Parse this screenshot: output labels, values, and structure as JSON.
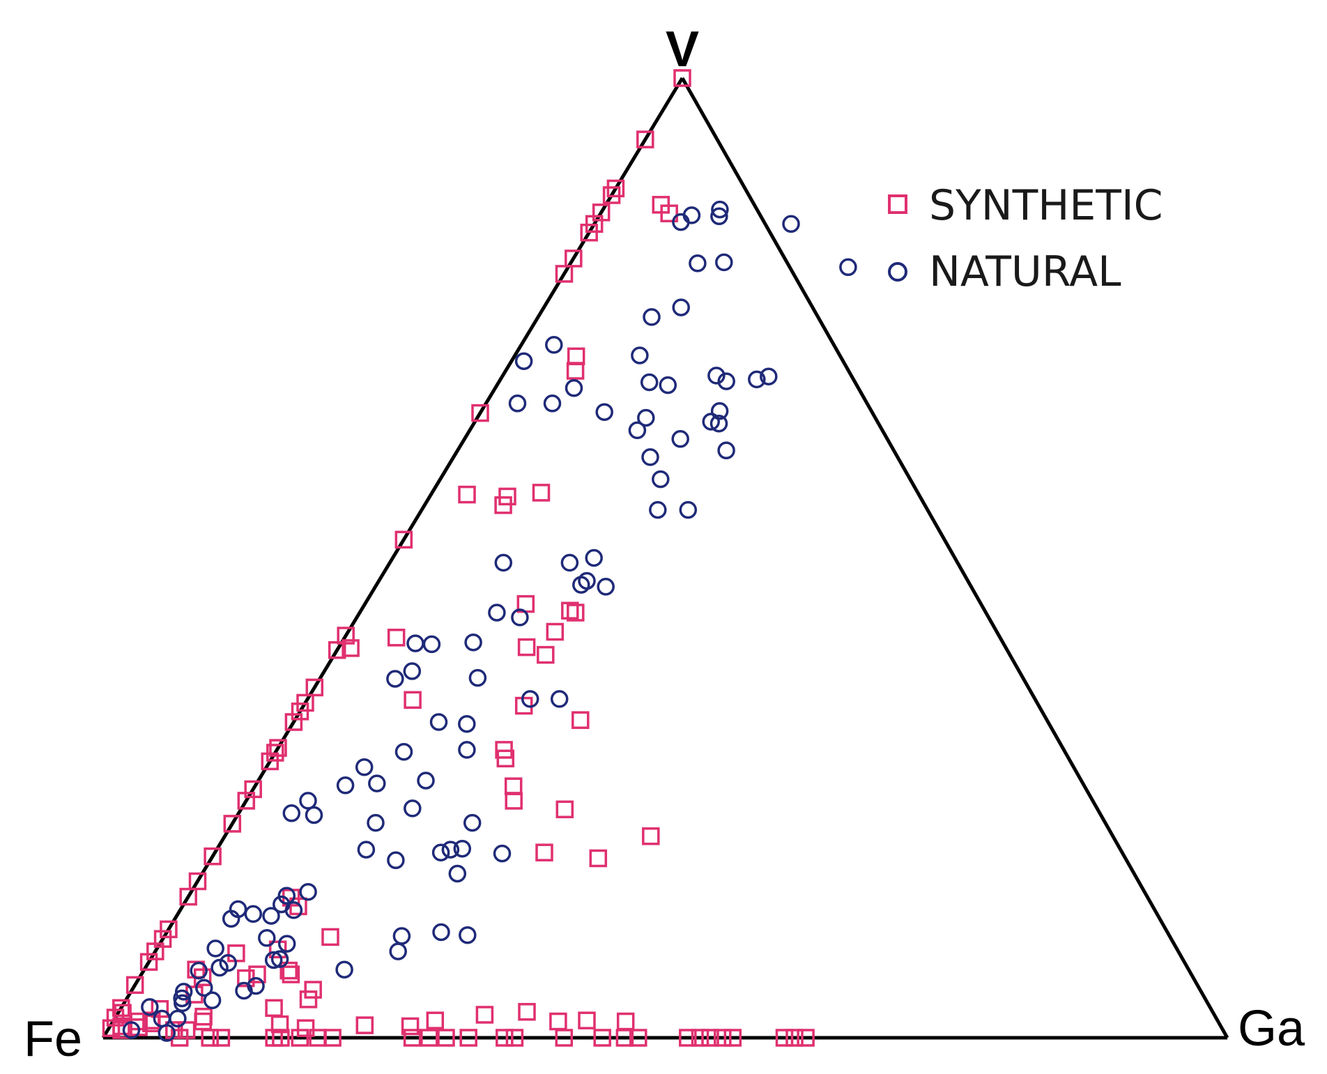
{
  "chart_data": {
    "type": "scatter",
    "subtype": "ternary",
    "title": "",
    "vertices": {
      "top": "V",
      "left": "Fe",
      "right": "Ga"
    },
    "colors": {
      "synthetic": "#e0306f",
      "natural": "#1f2a78",
      "edge": "#000000"
    },
    "legend": {
      "placement": "top-right",
      "entries": [
        {
          "label": "SYNTHETIC",
          "marker": "square",
          "series": "synthetic"
        },
        {
          "label": "NATURAL",
          "marker": "circle",
          "series": "natural"
        }
      ]
    },
    "series": [
      {
        "name": "SYNTHETIC",
        "marker": "square",
        "points": [
          [
            1.0,
            0.0
          ],
          [
            0.936,
            0.0
          ],
          [
            0.885,
            0.0
          ],
          [
            0.878,
            0.0
          ],
          [
            0.86,
            0.0
          ],
          [
            0.848,
            0.0
          ],
          [
            0.868,
            0.049
          ],
          [
            0.859,
            0.061
          ],
          [
            0.839,
            0.0
          ],
          [
            0.812,
            0.0
          ],
          [
            0.796,
            0.0
          ],
          [
            0.71,
            0.055
          ],
          [
            0.695,
            0.062
          ],
          [
            0.651,
            0.0
          ],
          [
            0.568,
            0.097
          ],
          [
            0.519,
            0.0
          ],
          [
            0.564,
            0.069
          ],
          [
            0.555,
            0.07
          ],
          [
            0.566,
            0.032
          ],
          [
            0.419,
            0.0
          ],
          [
            0.417,
            0.046
          ],
          [
            0.406,
            0.011
          ],
          [
            0.404,
            0.0
          ],
          [
            0.349,
            0.0
          ],
          [
            0.302,
            0.0
          ],
          [
            0.288,
            0.0
          ],
          [
            0.423,
            0.184
          ],
          [
            0.443,
            0.192
          ],
          [
            0.452,
            0.143
          ],
          [
            0.445,
            0.186
          ],
          [
            0.407,
            0.167
          ],
          [
            0.399,
            0.188
          ],
          [
            0.331,
            0.254
          ],
          [
            0.365,
            0.0
          ],
          [
            0.34,
            0.0
          ],
          [
            0.329,
            0.0
          ],
          [
            0.352,
            0.094
          ],
          [
            0.297,
            0.0
          ],
          [
            0.259,
            0.0
          ],
          [
            0.247,
            0.0
          ],
          [
            0.223,
            0.0
          ],
          [
            0.189,
            0.0
          ],
          [
            0.163,
            0.0
          ],
          [
            0.147,
            0.0
          ],
          [
            0.113,
            0.0
          ],
          [
            0.103,
            0.0
          ],
          [
            0.09,
            0.0
          ],
          [
            0.079,
            0.0
          ],
          [
            0.055,
            0.0
          ],
          [
            0.031,
            0.0
          ],
          [
            0.021,
            0.0
          ],
          [
            0.0,
            0.625
          ],
          [
            0.0,
            0.615
          ],
          [
            0.0,
            0.606
          ],
          [
            0.0,
            0.56
          ],
          [
            0.0,
            0.551
          ],
          [
            0.0,
            0.54
          ],
          [
            0.0,
            0.531
          ],
          [
            0.0,
            0.52
          ],
          [
            0.0,
            0.476
          ],
          [
            0.0,
            0.464
          ],
          [
            0.0,
            0.444
          ],
          [
            0.0,
            0.41
          ],
          [
            0.0,
            0.366
          ],
          [
            0.0,
            0.357
          ],
          [
            0.0,
            0.325
          ],
          [
            0.0,
            0.305
          ],
          [
            0.0,
            0.29
          ],
          [
            0.0,
            0.275
          ],
          [
            0.0,
            0.204
          ],
          [
            0.0,
            0.191
          ],
          [
            0.0,
            0.175
          ],
          [
            0.0,
            0.158
          ],
          [
            0.0,
            0.152
          ],
          [
            0.0,
            0.105
          ],
          [
            0.0,
            0.095
          ],
          [
            0.0,
            0.068
          ],
          [
            0.3,
            0.202
          ],
          [
            0.346,
            0.196
          ],
          [
            0.247,
            0.238
          ],
          [
            0.291,
            0.208
          ],
          [
            0.262,
            0.23
          ],
          [
            0.21,
            0.379
          ],
          [
            0.187,
            0.344
          ],
          [
            0.238,
            0.288
          ],
          [
            0.193,
            0.293
          ],
          [
            0.146,
            0.092
          ],
          [
            0.105,
            0.148
          ],
          [
            0.137,
            0.103
          ],
          [
            0.092,
            0.108
          ],
          [
            0.07,
            0.129
          ],
          [
            0.04,
            0.162
          ],
          [
            0.066,
            0.133
          ],
          [
            0.066,
            0.103
          ],
          [
            0.05,
            0.161
          ],
          [
            0.088,
            0.073
          ],
          [
            0.071,
            0.046
          ],
          [
            0.045,
            0.058
          ],
          [
            0.03,
            0.035
          ],
          [
            0.017,
            0.08
          ],
          [
            0.018,
            0.034
          ],
          [
            0.008,
            0.012
          ],
          [
            0.011,
            0.026
          ],
          [
            0.008,
            0.07
          ],
          [
            0.063,
            0.056
          ],
          [
            0.026,
            0.004
          ],
          [
            0.01,
            0.002
          ],
          [
            0.012,
            0.01
          ],
          [
            0.017,
            0.023
          ],
          [
            0.015,
            0.035
          ],
          [
            0.008,
            0.059
          ],
          [
            0.022,
            0.078
          ],
          [
            0.062,
            0.095
          ],
          [
            0.031,
            0.136
          ],
          [
            0.014,
            0.15
          ],
          [
            0.01,
            0.175
          ],
          [
            0.013,
            0.226
          ],
          [
            0.012,
            0.267
          ],
          [
            0.018,
            0.286
          ],
          [
            0.024,
            0.327
          ],
          [
            0.027,
            0.363
          ],
          [
            0.017,
            0.396
          ],
          [
            0.018,
            0.421
          ],
          [
            0.017,
            0.456
          ]
        ]
      },
      {
        "name": "NATURAL",
        "marker": "circle",
        "points": [
          [
            0.863,
            0.104
          ],
          [
            0.857,
            0.082
          ],
          [
            0.856,
            0.107
          ],
          [
            0.848,
            0.175
          ],
          [
            0.85,
            0.076
          ],
          [
            0.808,
            0.136
          ],
          [
            0.807,
            0.113
          ],
          [
            0.803,
            0.249
          ],
          [
            0.761,
            0.122
          ],
          [
            0.751,
            0.101
          ],
          [
            0.722,
            0.029
          ],
          [
            0.705,
            0.011
          ],
          [
            0.711,
            0.111
          ],
          [
            0.68,
            0.152
          ],
          [
            0.684,
            0.202
          ],
          [
            0.69,
            0.19
          ],
          [
            0.689,
            0.237
          ],
          [
            0.686,
            0.228
          ],
          [
            0.683,
            0.134
          ],
          [
            0.677,
            0.07
          ],
          [
            0.661,
            0.059
          ],
          [
            0.661,
            0.028
          ],
          [
            0.652,
            0.11
          ],
          [
            0.646,
            0.15
          ],
          [
            0.612,
            0.239
          ],
          [
            0.653,
            0.212
          ],
          [
            0.642,
            0.21
          ],
          [
            0.64,
            0.218
          ],
          [
            0.633,
            0.149
          ],
          [
            0.624,
            0.192
          ],
          [
            0.605,
            0.175
          ],
          [
            0.582,
            0.196
          ],
          [
            0.55,
            0.21
          ],
          [
            0.55,
            0.237
          ],
          [
            0.5,
            0.179
          ],
          [
            0.47,
            0.205
          ],
          [
            0.472,
            0.182
          ],
          [
            0.476,
            0.185
          ],
          [
            0.495,
            0.16
          ],
          [
            0.495,
            0.101
          ],
          [
            0.443,
            0.122
          ],
          [
            0.438,
            0.145
          ],
          [
            0.412,
            0.117
          ],
          [
            0.375,
            0.14
          ],
          [
            0.374,
            0.067
          ],
          [
            0.353,
            0.198
          ],
          [
            0.353,
            0.224
          ],
          [
            0.329,
            0.129
          ],
          [
            0.411,
            0.066
          ],
          [
            0.41,
            0.081
          ],
          [
            0.382,
            0.078
          ],
          [
            0.3,
            0.169
          ],
          [
            0.298,
            0.114
          ],
          [
            0.282,
            0.087
          ],
          [
            0.327,
            0.155
          ],
          [
            0.263,
            0.08
          ],
          [
            0.265,
            0.107
          ],
          [
            0.239,
            0.152
          ],
          [
            0.234,
            0.047
          ],
          [
            0.247,
            0.055
          ],
          [
            0.232,
            0.068
          ],
          [
            0.224,
            0.127
          ],
          [
            0.268,
            0.149
          ],
          [
            0.196,
            0.133
          ],
          [
            0.197,
            0.218
          ],
          [
            0.192,
            0.256
          ],
          [
            0.224,
            0.213
          ],
          [
            0.196,
            0.208
          ],
          [
            0.193,
            0.201
          ],
          [
            0.171,
            0.227
          ],
          [
            0.185,
            0.165
          ],
          [
            0.106,
            0.211
          ],
          [
            0.107,
            0.269
          ],
          [
            0.11,
            0.244
          ],
          [
            0.139,
            0.087
          ],
          [
            0.152,
            0.104
          ],
          [
            0.148,
            0.087
          ],
          [
            0.129,
            0.067
          ],
          [
            0.127,
            0.084
          ],
          [
            0.133,
            0.101
          ],
          [
            0.134,
            0.051
          ],
          [
            0.124,
            0.05
          ],
          [
            0.104,
            0.092
          ],
          [
            0.078,
            0.071
          ],
          [
            0.098,
            0.113
          ],
          [
            0.082,
            0.115
          ],
          [
            0.071,
            0.178
          ],
          [
            0.09,
            0.216
          ],
          [
            0.049,
            0.1
          ],
          [
            0.093,
            0.052
          ],
          [
            0.081,
            0.11
          ],
          [
            0.054,
            0.108
          ],
          [
            0.073,
            0.066
          ],
          [
            0.07,
            0.049
          ],
          [
            0.048,
            0.047
          ],
          [
            0.032,
            0.025
          ],
          [
            0.041,
            0.049
          ],
          [
            0.02,
            0.056
          ],
          [
            0.052,
            0.063
          ],
          [
            0.039,
            0.077
          ],
          [
            0.036,
            0.052
          ],
          [
            0.02,
            0.042
          ],
          [
            0.008,
            0.021
          ],
          [
            0.005,
            0.054
          ]
        ]
      }
    ]
  }
}
